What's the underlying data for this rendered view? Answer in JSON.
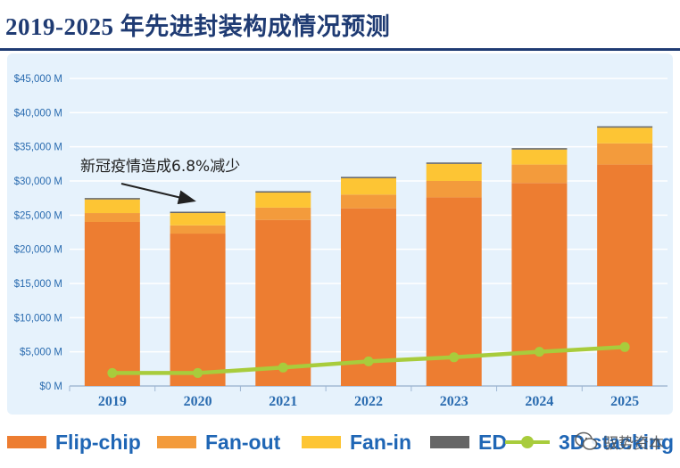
{
  "title": "2019-2025 年先进封装构成情况预测",
  "colors": {
    "flip_chip": "#ed7d31",
    "fan_out": "#f39b3c",
    "fan_in": "#fdc534",
    "ed": "#666666",
    "stacking_3d": "#a8cc3c",
    "axis_text": "#2b6cb0",
    "grid": "#ffffff"
  },
  "chart_data": {
    "type": "bar",
    "stacked": true,
    "categories": [
      "2019",
      "2020",
      "2021",
      "2022",
      "2023",
      "2024",
      "2025"
    ],
    "series": [
      {
        "name": "Flip-chip",
        "values": [
          24000,
          22300,
          24300,
          26000,
          27600,
          29700,
          32400
        ]
      },
      {
        "name": "Fan-out",
        "values": [
          1300,
          1200,
          1800,
          2000,
          2400,
          2700,
          3100
        ]
      },
      {
        "name": "Fan-in",
        "values": [
          2000,
          1800,
          2200,
          2400,
          2500,
          2200,
          2300
        ]
      },
      {
        "name": "ED",
        "values": [
          200,
          200,
          200,
          200,
          200,
          200,
          200
        ]
      }
    ],
    "line_series": {
      "name": "3D stacking",
      "values": [
        1900,
        1900,
        2700,
        3600,
        4200,
        5000,
        5700
      ]
    },
    "y_ticks": [
      "$0 M",
      "$5,000 M",
      "$10,000 M",
      "$15,000 M",
      "$20,000 M",
      "$25,000 M",
      "$30,000 M",
      "$35,000 M",
      "$40,000 M",
      "$45,000 M"
    ],
    "ylim": [
      0,
      45000
    ],
    "annotation": "新冠疫情造成6.8%减少",
    "legend_position": "bottom"
  },
  "legend": {
    "flip_chip": "Flip-chip",
    "fan_out": "Fan-out",
    "fan_in": "Fan-in",
    "ed": "ED",
    "stacking_3d": "3D stacking"
  },
  "watermark": {
    "text": "驭势资本",
    "icon": "wechat-icon"
  }
}
